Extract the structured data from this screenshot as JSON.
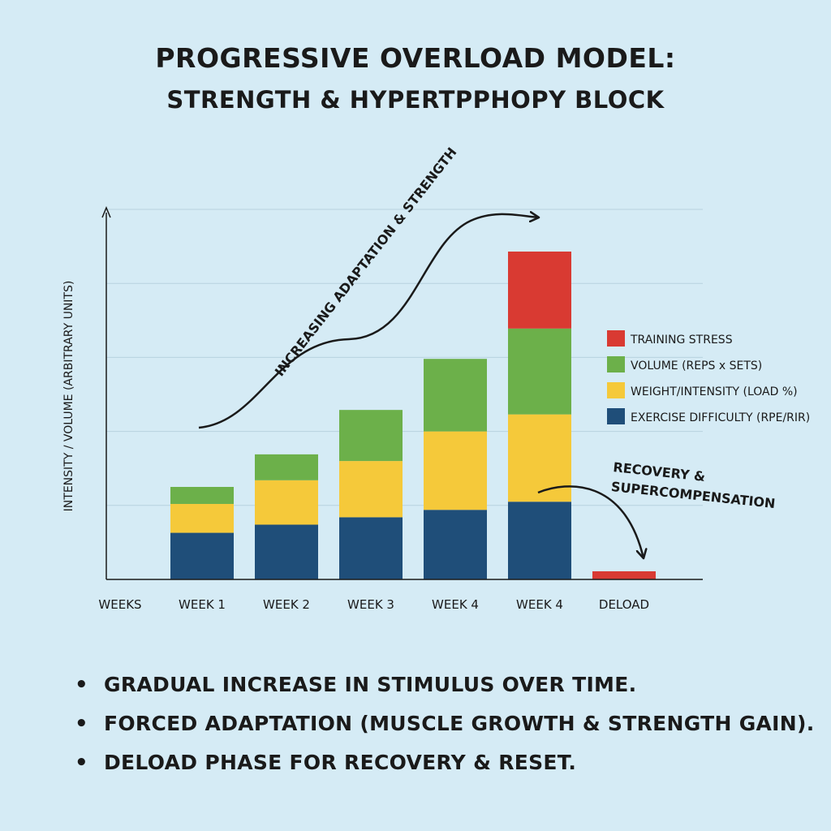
{
  "title": {
    "line1": "PROGRESSIVE OVERLOAD MODEL:",
    "line2": "STRENGTH & HYPERTPPHOPY BLOCK"
  },
  "chart_data": {
    "type": "bar",
    "stacked": true,
    "xlabel": "WEEKS",
    "ylabel": "INTENSITY / VOLUME (ARBITRARY UNITS)",
    "categories": [
      "WEEK 1",
      "WEEK 2",
      "WEEK 3",
      "WEEK 4",
      "WEEK 4",
      "DELOAD"
    ],
    "ylim": [
      0,
      5
    ],
    "grid": true,
    "legend_position": "right",
    "series": [
      {
        "name": "EXERCISE DIFFICULTY (RPE/RIR)",
        "color": "#1f4e79",
        "values": [
          0.63,
          0.74,
          0.84,
          0.94,
          1.05,
          0
        ]
      },
      {
        "name": "WEIGHT/INTENSITY (LOAD %)",
        "color": "#f5c93a",
        "values": [
          0.39,
          0.6,
          0.76,
          1.06,
          1.18,
          0
        ]
      },
      {
        "name": "VOLUME (REPS x SETS)",
        "color": "#6cb04a",
        "values": [
          0.23,
          0.35,
          0.69,
          0.98,
          1.16,
          0
        ]
      },
      {
        "name": "TRAINING STRESS",
        "color": "#d93a32",
        "values": [
          0,
          0,
          0,
          0,
          1.04,
          0.11
        ]
      }
    ],
    "legend_order": [
      "TRAINING STRESS",
      "VOLUME (REPS x SETS)",
      "WEIGHT/INTENSITY (LOAD %)",
      "EXERCISE DIFFICULTY (RPE/RIR)"
    ],
    "annotations": [
      {
        "text": "INCREASING ADAPTATION & STRENGTH"
      },
      {
        "text_lines": [
          "RECOVERY &",
          "SUPERCOMPENSATION"
        ]
      }
    ]
  },
  "bullets": [
    "GRADUAL INCREASE IN STIMULUS OVER TIME.",
    "FORCED ADAPTATION (MUSCLE GROWTH & STRENGTH GAIN).",
    "DELOAD PHASE FOR RECOVERY & RESET."
  ]
}
